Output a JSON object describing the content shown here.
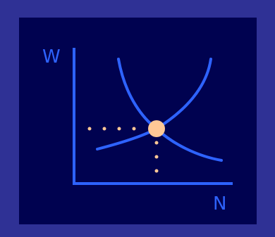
{
  "axes": {
    "y_label": "W",
    "x_label": "N"
  },
  "colors": {
    "frame": "#2f3195",
    "panel": "#000250",
    "axis": "#2e63ff",
    "curve": "#2e63ff",
    "equilibrium_point": "#ffc896",
    "guide_dots": "#ffc896"
  }
}
